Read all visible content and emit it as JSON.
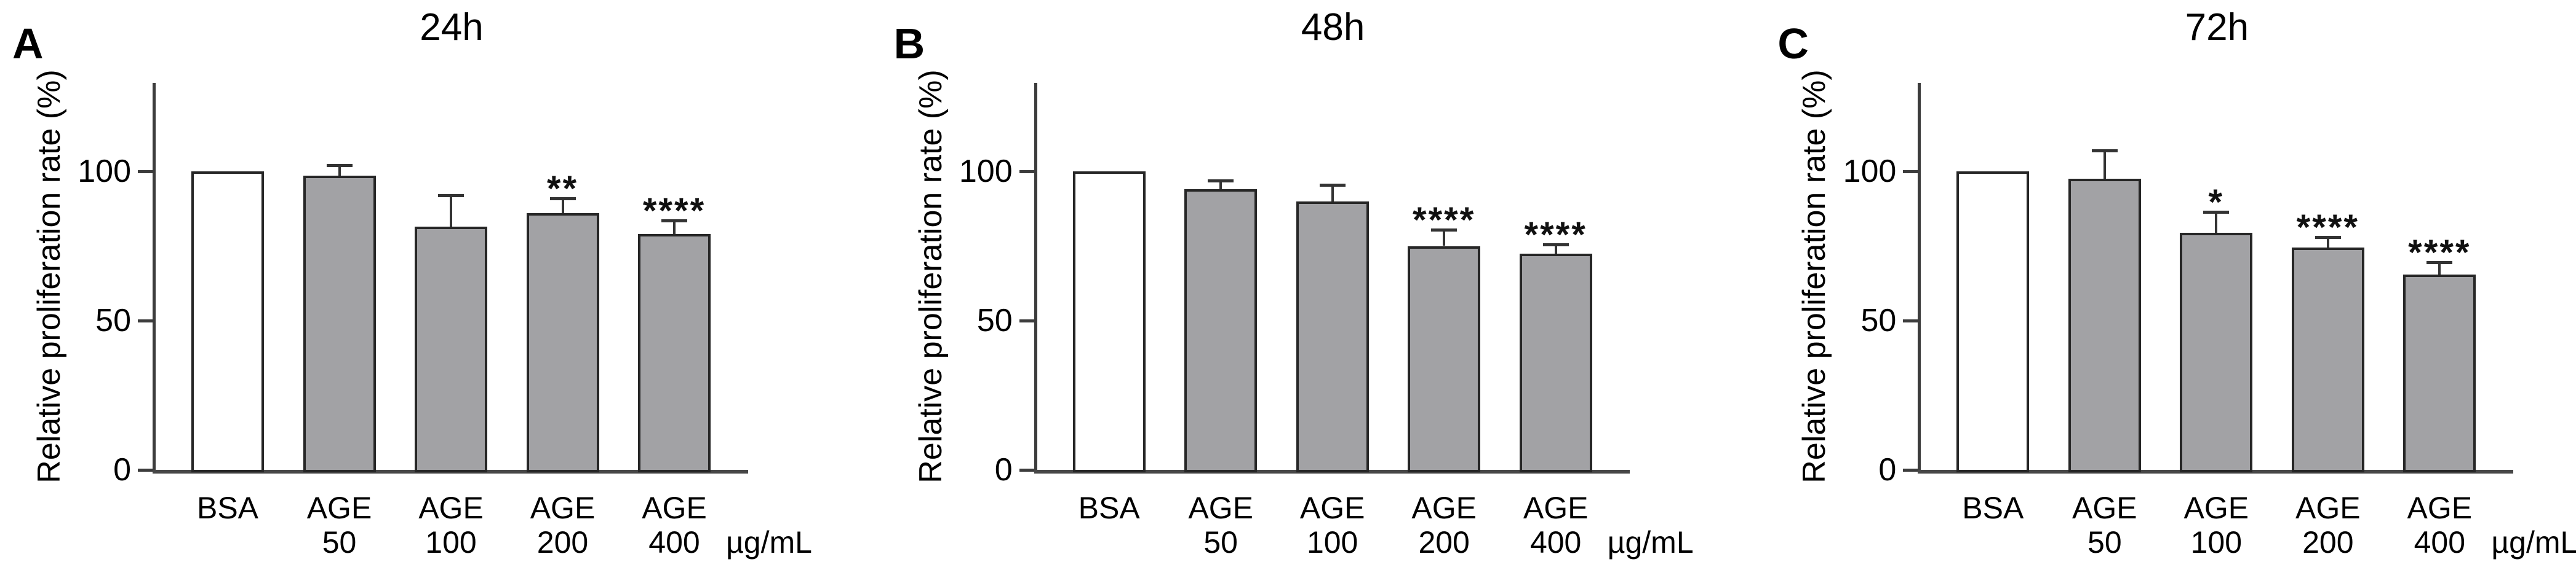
{
  "figure": {
    "background": "#ffffff",
    "colors": {
      "control_fill": "#ffffff",
      "treatment_fill": "#a2a2a5",
      "bar_border": "#262626",
      "axis_line": "#3c3c3c",
      "baseline": "#474747",
      "error_bar": "#333333",
      "text": "#000000"
    }
  },
  "chart_data": [
    {
      "type": "bar",
      "panel_label": "A",
      "title": "24h",
      "ylabel": "Relative proliferation rate (%)",
      "unit_label": "µg/mL",
      "ylim": [
        0,
        130
      ],
      "yticks": [
        0,
        50,
        100
      ],
      "grid": "off",
      "legend": "none",
      "categories": [
        [
          "BSA",
          ""
        ],
        [
          "AGE",
          "50"
        ],
        [
          "AGE",
          "100"
        ],
        [
          "AGE",
          "200"
        ],
        [
          "AGE",
          "400"
        ]
      ],
      "values": [
        100,
        98.5,
        81.5,
        86,
        79
      ],
      "errors_upper": [
        0,
        3.5,
        10.5,
        5,
        4.5
      ],
      "significance": [
        "",
        "",
        "",
        "**",
        "****"
      ],
      "bar_styles": [
        "control",
        "treatment",
        "treatment",
        "treatment",
        "treatment"
      ]
    },
    {
      "type": "bar",
      "panel_label": "B",
      "title": "48h",
      "ylabel": "Relative proliferation rate (%)",
      "unit_label": "µg/mL",
      "ylim": [
        0,
        130
      ],
      "yticks": [
        0,
        50,
        100
      ],
      "grid": "off",
      "legend": "none",
      "categories": [
        [
          "BSA",
          ""
        ],
        [
          "AGE",
          "50"
        ],
        [
          "AGE",
          "100"
        ],
        [
          "AGE",
          "200"
        ],
        [
          "AGE",
          "400"
        ]
      ],
      "values": [
        100,
        94,
        90,
        75,
        72.5
      ],
      "errors_upper": [
        0,
        3,
        5.5,
        5.5,
        3
      ],
      "significance": [
        "",
        "",
        "",
        "****",
        "****"
      ],
      "bar_styles": [
        "control",
        "treatment",
        "treatment",
        "treatment",
        "treatment"
      ]
    },
    {
      "type": "bar",
      "panel_label": "C",
      "title": "72h",
      "ylabel": "Relative proliferation rate (%)",
      "unit_label": "µg/mL",
      "ylim": [
        0,
        130
      ],
      "yticks": [
        0,
        50,
        100
      ],
      "grid": "off",
      "legend": "none",
      "categories": [
        [
          "BSA",
          ""
        ],
        [
          "AGE",
          "50"
        ],
        [
          "AGE",
          "100"
        ],
        [
          "AGE",
          "200"
        ],
        [
          "AGE",
          "400"
        ]
      ],
      "values": [
        100,
        97.5,
        79.5,
        74.5,
        65.5
      ],
      "errors_upper": [
        0,
        9.5,
        7,
        3.5,
        4
      ],
      "significance": [
        "",
        "",
        "*",
        "****",
        "****"
      ],
      "bar_styles": [
        "control",
        "treatment",
        "treatment",
        "treatment",
        "treatment"
      ]
    }
  ]
}
